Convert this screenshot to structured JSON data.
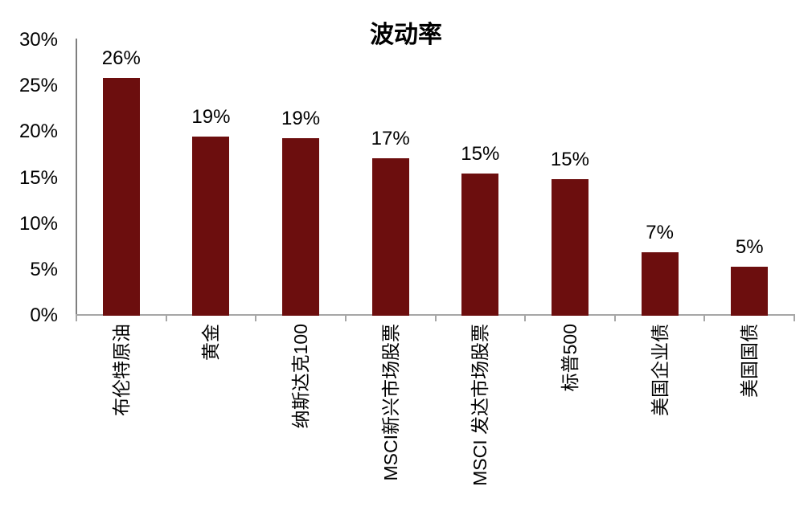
{
  "chart_data": {
    "type": "bar",
    "title": "波动率",
    "categories": [
      "布伦特原油",
      "黄金",
      "纳斯达克100",
      "MSCI新兴市场股票",
      "MSCI 发达市场股票",
      "标普500",
      "美国企业债",
      "美国国债"
    ],
    "values": [
      26,
      19,
      19,
      17,
      15,
      15,
      7,
      5
    ],
    "value_labels": [
      "26%",
      "19%",
      "19%",
      "17%",
      "15%",
      "15%",
      "7%",
      "5%"
    ],
    "bar_heights_precise_pct": [
      25.9,
      19.5,
      19.3,
      17.1,
      15.5,
      14.9,
      6.9,
      5.3
    ],
    "xlabel": "",
    "ylabel": "",
    "ylim": [
      0,
      30
    ],
    "y_tick_labels": [
      "0%",
      "5%",
      "10%",
      "15%",
      "20%",
      "25%",
      "30%"
    ],
    "y_tick_values": [
      0,
      5,
      10,
      15,
      20,
      25,
      30
    ],
    "grid": false,
    "legend": null,
    "bar_color": "#6c0e0e",
    "x_axis_color": "#a6a6a6",
    "y_axis_color": "#7f7f7f",
    "text_color": "#000000"
  }
}
